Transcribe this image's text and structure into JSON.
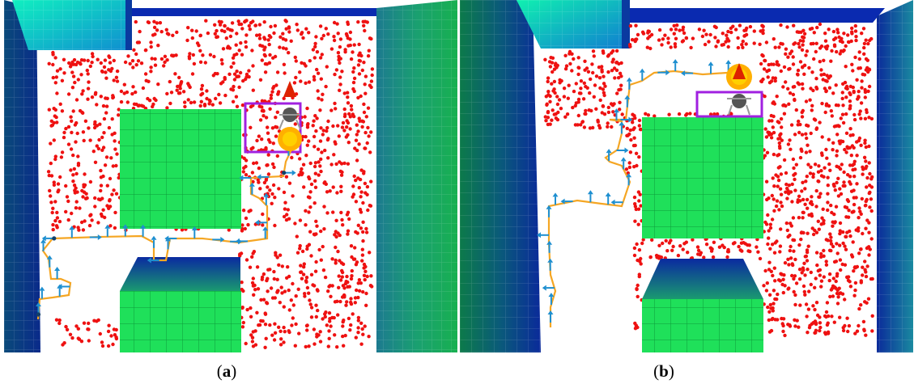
{
  "panels": [
    {
      "id": "a",
      "caption_open": "(",
      "caption_letter": "a",
      "caption_close": ")"
    },
    {
      "id": "b",
      "caption_open": "(",
      "caption_letter": "b",
      "caption_close": ")"
    }
  ],
  "colors": {
    "obstacle": "#1fe05a",
    "point_cloud": "#ee1111",
    "trajectory": "#f5a623",
    "arrow": "#1e8fd0",
    "goal_box": "#a020e0",
    "floor": "#ffffff",
    "wall": "#0a3a8a"
  },
  "scene_objects": [
    "wall-left",
    "wall-right",
    "wall-top",
    "obstacle-center",
    "obstacle-bottom",
    "goal-box",
    "drone",
    "point-cloud",
    "trajectory"
  ]
}
